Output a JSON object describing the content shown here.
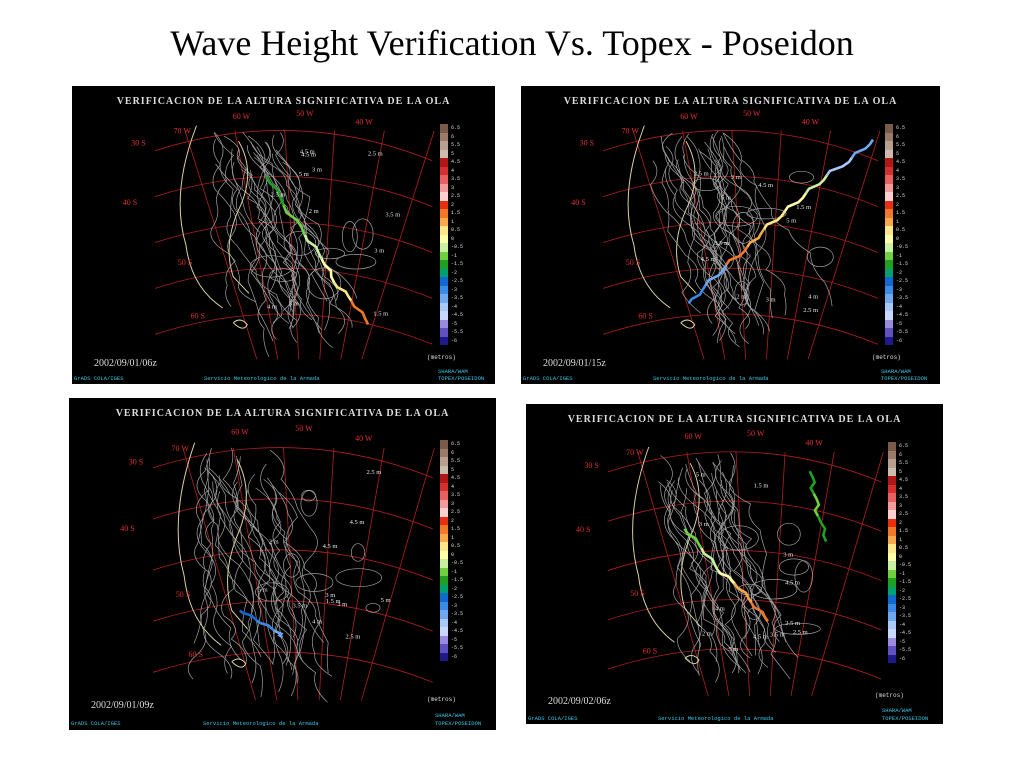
{
  "slide": {
    "title": "Wave Height Verification Vs. Topex - Poseidon"
  },
  "panel_common": {
    "title": "VERIFICACION DE LA ALTURA SIGNIFICATIVA DE LA OLA",
    "unit": "(metros)",
    "footer_left": "GrADS COLA/IGES",
    "footer_center": "Servicio Meteorologico de la Armada",
    "footer_right_1": "SHARA/WAM",
    "footer_right_2": "TOPEX/POSEIDON",
    "lon_labels": [
      "70 W",
      "60 W",
      "50 W",
      "40 W"
    ],
    "lat_labels": [
      "30 S",
      "40 S",
      "50 S",
      "60 S"
    ],
    "contour_labels": [
      "2.5 m",
      "4.5 m",
      "3 m",
      "5 m",
      "3.5 m",
      "4 m",
      "2 m",
      "1.5 m"
    ]
  },
  "color_scale": {
    "labels": [
      "6.5",
      "6",
      "5.5",
      "5",
      "4.5",
      "4",
      "3.5",
      "3",
      "2.5",
      "2",
      "1.5",
      "1",
      "0.5",
      "0",
      "-0.5",
      "-1",
      "-1.5",
      "-2",
      "-2.5",
      "-3",
      "-3.5",
      "-4",
      "-4.5",
      "-5",
      "-5.5",
      "-6"
    ],
    "colors": [
      "#7a5a48",
      "#9a7a68",
      "#b8a090",
      "#ccbcb0",
      "#b01818",
      "#d43030",
      "#e86060",
      "#f49a9a",
      "#fcd0d0",
      "#e83010",
      "#f07828",
      "#f8a848",
      "#fce888",
      "#ffffa8",
      "#c8f0a0",
      "#70d040",
      "#20a020",
      "#00a070",
      "#106ad0",
      "#3a8ae8",
      "#70a8f0",
      "#a8c8f8",
      "#c8d8fc",
      "#9a8ae0",
      "#6050c0",
      "#1e1a8a"
    ]
  },
  "panels": [
    {
      "id": "p1",
      "date": "2002/09/01/06z"
    },
    {
      "id": "p2",
      "date": "2002/09/01/15z"
    },
    {
      "id": "p3",
      "date": "2002/09/01/09z"
    },
    {
      "id": "p4",
      "date": "2002/09/02/06z"
    }
  ]
}
